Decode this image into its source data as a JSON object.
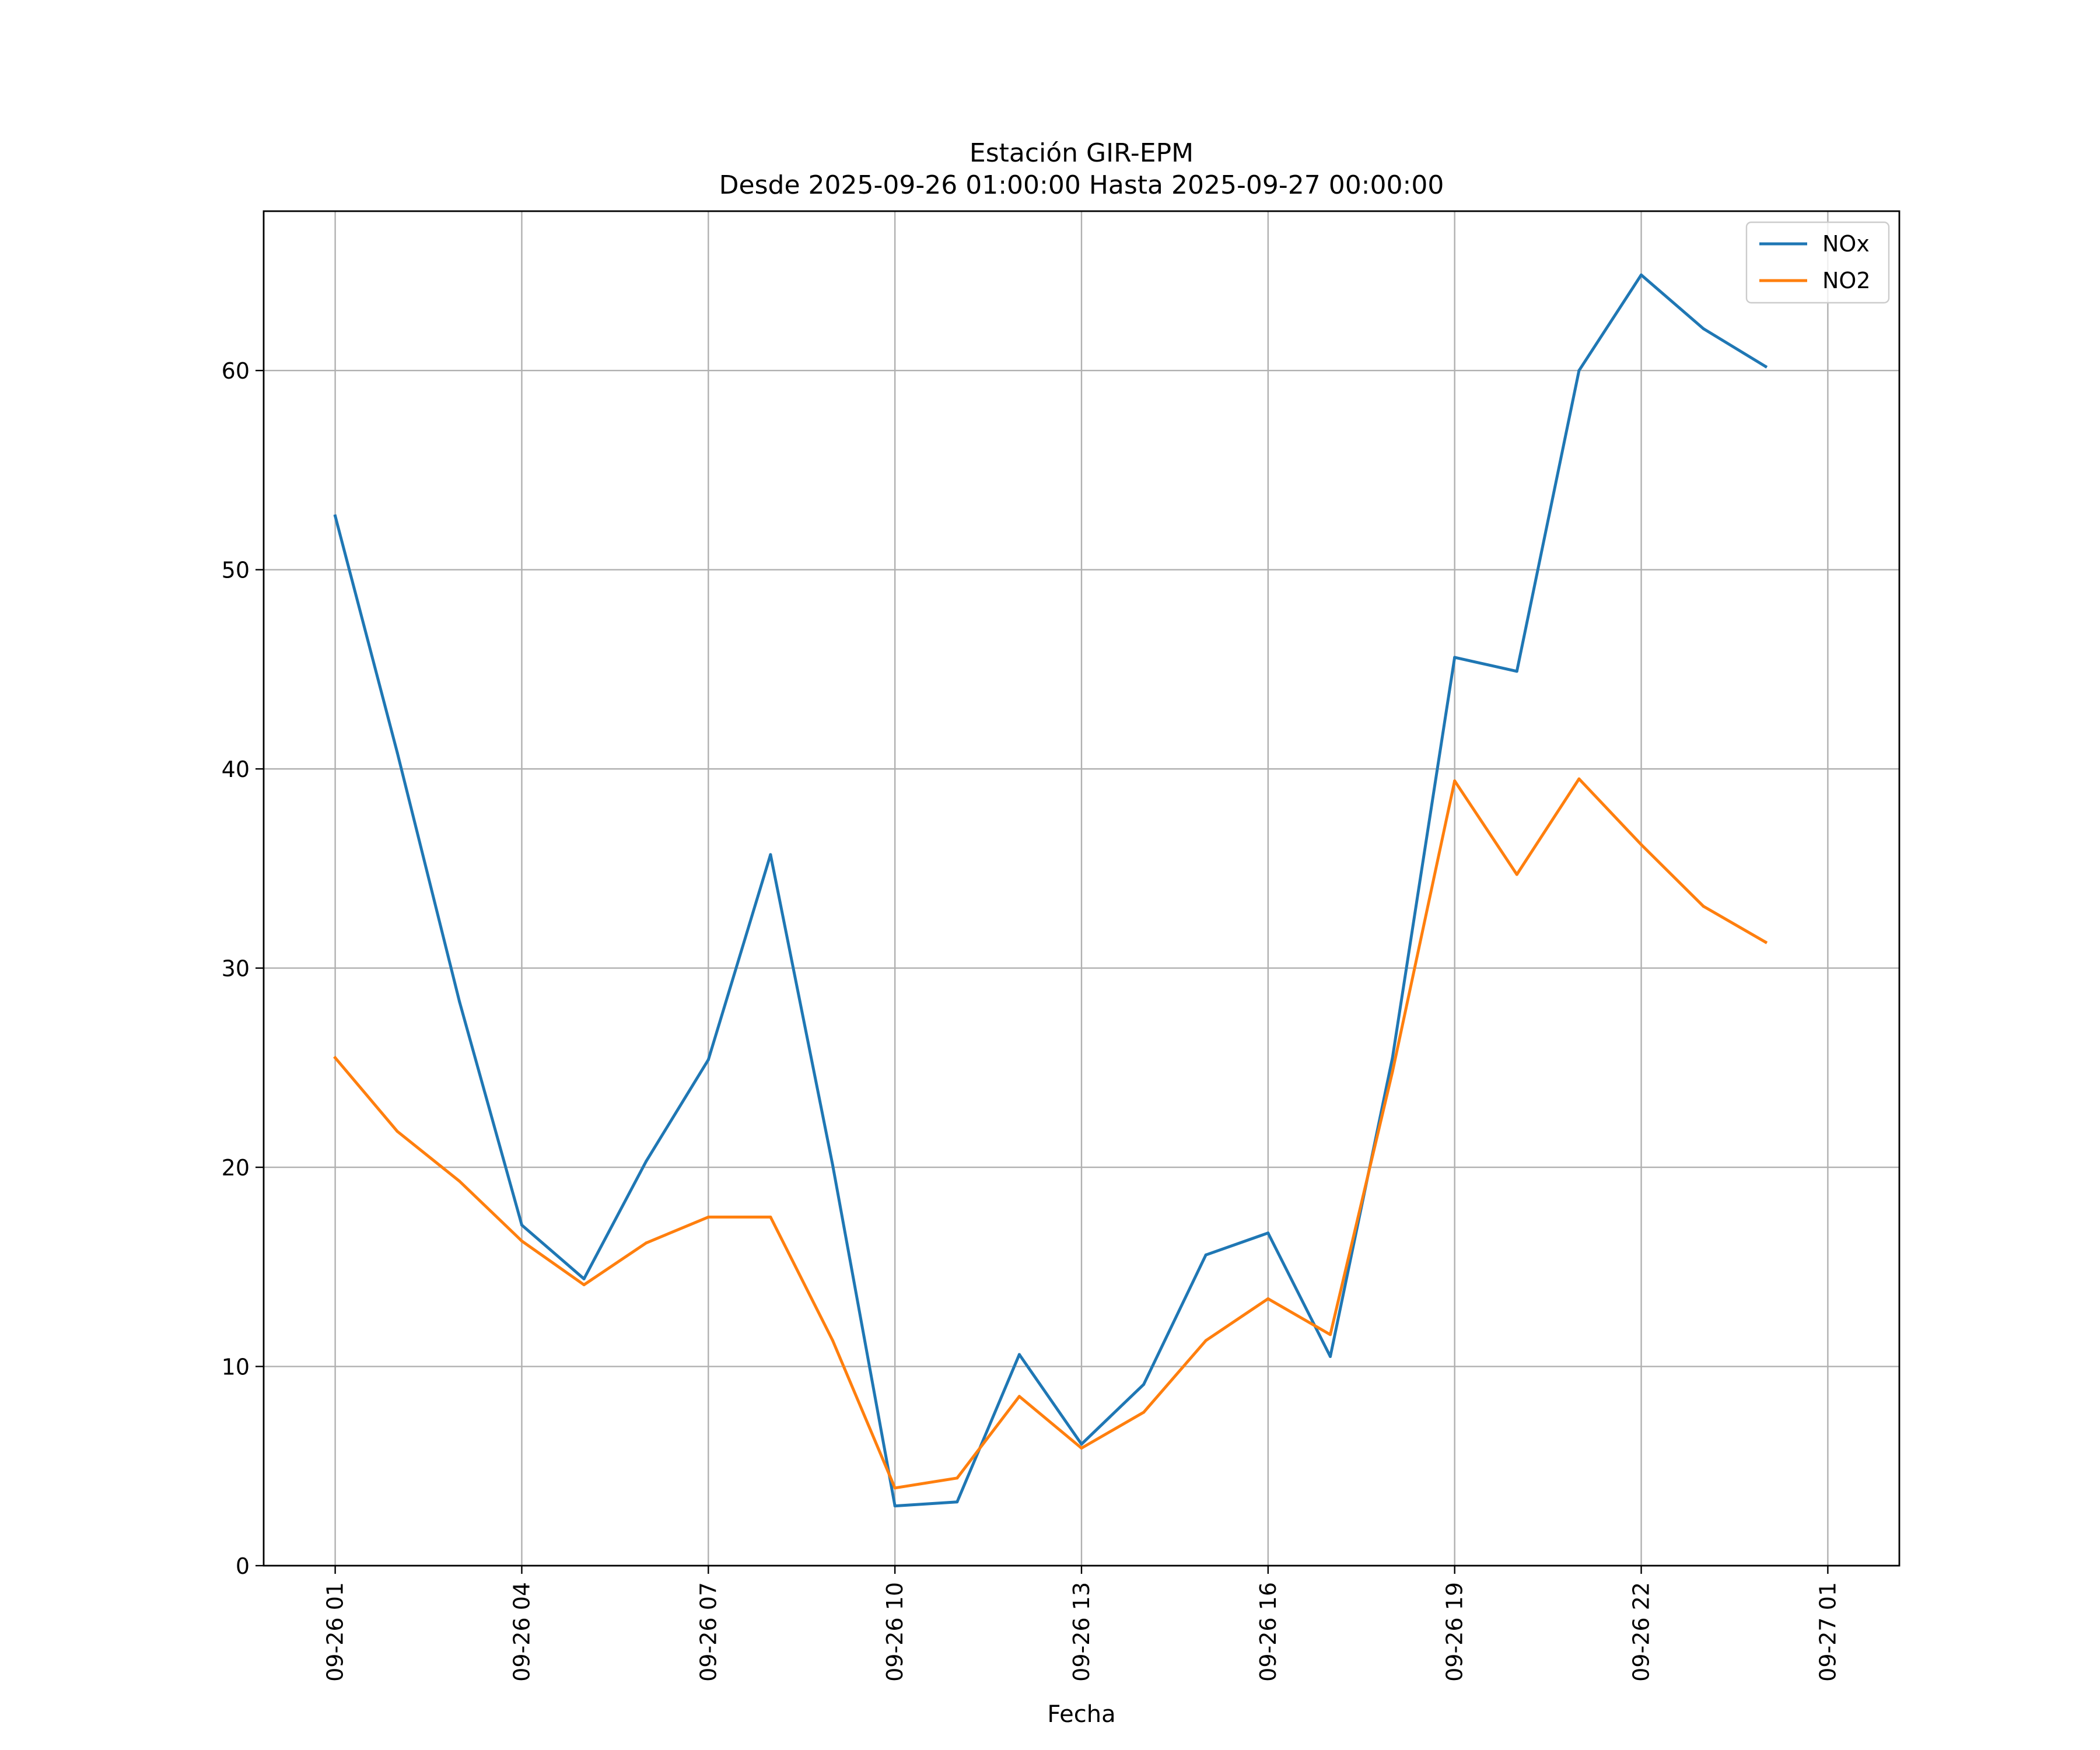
{
  "chart_data": {
    "type": "line",
    "title": "Estación GIR-EPM",
    "subtitle": "Desde 2025-09-26 01:00:00 Hasta 2025-09-27 00:00:00",
    "xlabel": "Fecha",
    "ylabel": "",
    "x": [
      "2025-09-26 01:00",
      "2025-09-26 02:00",
      "2025-09-26 03:00",
      "2025-09-26 04:00",
      "2025-09-26 05:00",
      "2025-09-26 06:00",
      "2025-09-26 07:00",
      "2025-09-26 08:00",
      "2025-09-26 09:00",
      "2025-09-26 10:00",
      "2025-09-26 11:00",
      "2025-09-26 12:00",
      "2025-09-26 13:00",
      "2025-09-26 14:00",
      "2025-09-26 15:00",
      "2025-09-26 16:00",
      "2025-09-26 17:00",
      "2025-09-26 18:00",
      "2025-09-26 19:00",
      "2025-09-26 20:00",
      "2025-09-26 21:00",
      "2025-09-26 22:00",
      "2025-09-26 23:00",
      "2025-09-27 00:00"
    ],
    "x_ticks": [
      "09-26 01",
      "09-26 04",
      "09-26 07",
      "09-26 10",
      "09-26 13",
      "09-26 16",
      "09-26 19",
      "09-26 22",
      "09-27 01"
    ],
    "y_ticks": [
      "0",
      "10",
      "20",
      "30",
      "40",
      "50",
      "60"
    ],
    "ylim": [
      0,
      68
    ],
    "grid": true,
    "legend_position": "top-right",
    "series": [
      {
        "name": "NOx",
        "color": "#1f77b4",
        "values": [
          52.7,
          40.8,
          28.3,
          17.1,
          14.4,
          20.3,
          25.4,
          35.7,
          20.1,
          3.0,
          3.2,
          10.6,
          6.1,
          9.1,
          15.6,
          16.7,
          10.5,
          25.5,
          45.6,
          44.9,
          60.0,
          64.8,
          62.1,
          60.2
        ]
      },
      {
        "name": "NO2",
        "color": "#ff7f0e",
        "values": [
          25.5,
          21.8,
          19.3,
          16.3,
          14.1,
          16.2,
          17.5,
          17.5,
          11.3,
          3.9,
          4.4,
          8.5,
          5.9,
          7.7,
          11.3,
          13.4,
          11.6,
          24.8,
          39.4,
          34.7,
          39.5,
          36.2,
          33.1,
          31.3
        ]
      }
    ]
  }
}
